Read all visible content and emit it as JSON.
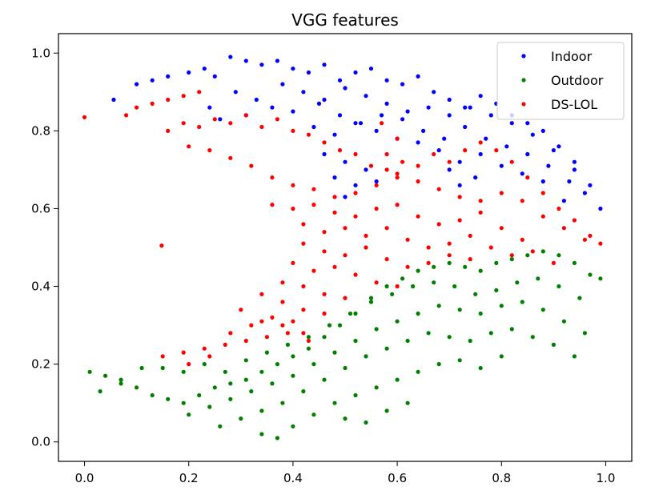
{
  "chart_data": {
    "type": "scatter",
    "title": "VGG features",
    "xlabel": "",
    "ylabel": "",
    "xlim": [
      -0.05,
      1.05
    ],
    "ylim": [
      -0.05,
      1.05
    ],
    "xticks": [
      "0.0",
      "0.2",
      "0.4",
      "0.6",
      "0.8",
      "1.0"
    ],
    "yticks": [
      "0.0",
      "0.2",
      "0.4",
      "0.6",
      "0.8",
      "1.0"
    ],
    "grid": false,
    "legend": {
      "placement": "top-right",
      "entries": [
        "Indoor",
        "Outdoor",
        "DS-LOL"
      ]
    },
    "series": [
      {
        "name": "Indoor",
        "color": "#0000ff",
        "x": [
          0.056,
          0.1,
          0.13,
          0.16,
          0.2,
          0.23,
          0.25,
          0.28,
          0.31,
          0.34,
          0.37,
          0.4,
          0.43,
          0.46,
          0.49,
          0.52,
          0.55,
          0.58,
          0.61,
          0.64,
          0.67,
          0.7,
          0.73,
          0.76,
          0.79,
          0.82,
          0.85,
          0.88,
          0.91,
          0.94,
          0.97,
          0.99,
          0.24,
          0.29,
          0.33,
          0.38,
          0.42,
          0.46,
          0.5,
          0.54,
          0.58,
          0.62,
          0.66,
          0.7,
          0.74,
          0.78,
          0.82,
          0.86,
          0.9,
          0.94,
          0.96,
          0.26,
          0.31,
          0.36,
          0.4,
          0.45,
          0.49,
          0.53,
          0.57,
          0.61,
          0.65,
          0.69,
          0.73,
          0.77,
          0.81,
          0.85,
          0.89,
          0.93,
          0.44,
          0.48,
          0.52,
          0.56,
          0.6,
          0.64,
          0.68,
          0.72,
          0.76,
          0.8,
          0.84,
          0.88,
          0.92,
          0.46,
          0.5,
          0.54,
          0.48,
          0.52,
          0.56,
          0.5,
          0.7,
          0.72,
          0.75
        ],
        "y": [
          0.88,
          0.92,
          0.93,
          0.94,
          0.95,
          0.96,
          0.94,
          0.99,
          0.98,
          0.97,
          0.98,
          0.96,
          0.95,
          0.97,
          0.93,
          0.95,
          0.96,
          0.93,
          0.92,
          0.94,
          0.9,
          0.88,
          0.86,
          0.89,
          0.87,
          0.84,
          0.82,
          0.8,
          0.76,
          0.72,
          0.66,
          0.6,
          0.86,
          0.9,
          0.88,
          0.92,
          0.9,
          0.88,
          0.91,
          0.89,
          0.87,
          0.85,
          0.86,
          0.84,
          0.86,
          0.84,
          0.82,
          0.79,
          0.75,
          0.7,
          0.64,
          0.83,
          0.84,
          0.86,
          0.85,
          0.87,
          0.84,
          0.82,
          0.84,
          0.83,
          0.8,
          0.78,
          0.81,
          0.78,
          0.76,
          0.74,
          0.71,
          0.67,
          0.81,
          0.79,
          0.82,
          0.8,
          0.78,
          0.77,
          0.75,
          0.72,
          0.74,
          0.71,
          0.69,
          0.67,
          0.62,
          0.74,
          0.72,
          0.7,
          0.68,
          0.66,
          0.67,
          0.63,
          0.7,
          0.66,
          0.68
        ]
      },
      {
        "name": "Outdoor",
        "color": "#008000",
        "x": [
          0.01,
          0.04,
          0.07,
          0.1,
          0.13,
          0.16,
          0.19,
          0.22,
          0.25,
          0.28,
          0.31,
          0.34,
          0.37,
          0.4,
          0.43,
          0.46,
          0.49,
          0.52,
          0.55,
          0.58,
          0.61,
          0.64,
          0.67,
          0.7,
          0.73,
          0.76,
          0.79,
          0.82,
          0.85,
          0.88,
          0.91,
          0.94,
          0.97,
          0.99,
          0.03,
          0.07,
          0.11,
          0.15,
          0.19,
          0.23,
          0.27,
          0.31,
          0.35,
          0.39,
          0.43,
          0.47,
          0.51,
          0.55,
          0.59,
          0.63,
          0.67,
          0.71,
          0.75,
          0.79,
          0.83,
          0.87,
          0.91,
          0.95,
          0.2,
          0.24,
          0.28,
          0.32,
          0.36,
          0.4,
          0.44,
          0.48,
          0.52,
          0.56,
          0.6,
          0.64,
          0.68,
          0.72,
          0.76,
          0.8,
          0.84,
          0.88,
          0.92,
          0.96,
          0.26,
          0.3,
          0.34,
          0.38,
          0.42,
          0.46,
          0.5,
          0.54,
          0.58,
          0.62,
          0.66,
          0.7,
          0.74,
          0.78,
          0.82,
          0.86,
          0.9,
          0.94,
          0.34,
          0.37,
          0.4,
          0.44,
          0.48,
          0.52,
          0.56,
          0.6,
          0.64,
          0.68,
          0.72,
          0.76,
          0.8,
          0.5,
          0.54,
          0.58,
          0.62
        ],
        "y": [
          0.18,
          0.17,
          0.15,
          0.14,
          0.12,
          0.11,
          0.1,
          0.12,
          0.14,
          0.15,
          0.16,
          0.18,
          0.2,
          0.22,
          0.24,
          0.27,
          0.3,
          0.33,
          0.37,
          0.4,
          0.42,
          0.44,
          0.45,
          0.46,
          0.45,
          0.44,
          0.46,
          0.47,
          0.48,
          0.49,
          0.48,
          0.46,
          0.43,
          0.42,
          0.13,
          0.16,
          0.19,
          0.19,
          0.18,
          0.2,
          0.18,
          0.21,
          0.23,
          0.25,
          0.27,
          0.3,
          0.33,
          0.36,
          0.38,
          0.4,
          0.41,
          0.4,
          0.38,
          0.39,
          0.41,
          0.42,
          0.4,
          0.37,
          0.07,
          0.09,
          0.11,
          0.13,
          0.15,
          0.17,
          0.2,
          0.23,
          0.26,
          0.29,
          0.31,
          0.33,
          0.35,
          0.34,
          0.33,
          0.35,
          0.36,
          0.34,
          0.31,
          0.28,
          0.04,
          0.06,
          0.08,
          0.1,
          0.13,
          0.16,
          0.19,
          0.22,
          0.24,
          0.26,
          0.28,
          0.27,
          0.26,
          0.28,
          0.29,
          0.27,
          0.25,
          0.22,
          0.02,
          0.01,
          0.04,
          0.07,
          0.1,
          0.12,
          0.14,
          0.16,
          0.18,
          0.2,
          0.21,
          0.19,
          0.22,
          0.06,
          0.05,
          0.08,
          0.1
        ]
      },
      {
        "name": "DS-LOL",
        "color": "#ff0000",
        "x": [
          0.0,
          0.148,
          0.08,
          0.1,
          0.13,
          0.16,
          0.19,
          0.22,
          0.16,
          0.19,
          0.22,
          0.25,
          0.28,
          0.31,
          0.34,
          0.37,
          0.4,
          0.43,
          0.46,
          0.49,
          0.52,
          0.55,
          0.58,
          0.61,
          0.64,
          0.67,
          0.7,
          0.73,
          0.76,
          0.79,
          0.82,
          0.85,
          0.88,
          0.91,
          0.94,
          0.97,
          0.99,
          0.2,
          0.24,
          0.28,
          0.32,
          0.36,
          0.4,
          0.44,
          0.48,
          0.52,
          0.56,
          0.6,
          0.64,
          0.68,
          0.72,
          0.76,
          0.8,
          0.84,
          0.88,
          0.92,
          0.96,
          0.36,
          0.4,
          0.44,
          0.48,
          0.52,
          0.56,
          0.6,
          0.64,
          0.68,
          0.72,
          0.76,
          0.8,
          0.84,
          0.42,
          0.46,
          0.5,
          0.54,
          0.58,
          0.62,
          0.66,
          0.7,
          0.74,
          0.78,
          0.82,
          0.86,
          0.9,
          0.42,
          0.46,
          0.5,
          0.54,
          0.58,
          0.62,
          0.66,
          0.7,
          0.74,
          0.4,
          0.44,
          0.48,
          0.52,
          0.56,
          0.6,
          0.38,
          0.42,
          0.46,
          0.5,
          0.34,
          0.38,
          0.42,
          0.46,
          0.3,
          0.34,
          0.38,
          0.42,
          0.15,
          0.19,
          0.23,
          0.27,
          0.31,
          0.35,
          0.39,
          0.43,
          0.2,
          0.24,
          0.28,
          0.32,
          0.36,
          0.4,
          0.57,
          0.6,
          0.58,
          0.6
        ],
        "y": [
          0.835,
          0.505,
          0.84,
          0.86,
          0.87,
          0.88,
          0.89,
          0.9,
          0.8,
          0.82,
          0.81,
          0.83,
          0.82,
          0.84,
          0.81,
          0.83,
          0.8,
          0.79,
          0.77,
          0.75,
          0.74,
          0.71,
          0.7,
          0.72,
          0.71,
          0.74,
          0.72,
          0.75,
          0.77,
          0.75,
          0.72,
          0.68,
          0.64,
          0.6,
          0.57,
          0.53,
          0.51,
          0.76,
          0.75,
          0.73,
          0.71,
          0.68,
          0.66,
          0.65,
          0.63,
          0.64,
          0.66,
          0.68,
          0.67,
          0.65,
          0.63,
          0.62,
          0.64,
          0.62,
          0.58,
          0.55,
          0.52,
          0.61,
          0.6,
          0.61,
          0.59,
          0.58,
          0.6,
          0.61,
          0.58,
          0.56,
          0.57,
          0.59,
          0.55,
          0.52,
          0.56,
          0.54,
          0.55,
          0.53,
          0.55,
          0.52,
          0.5,
          0.51,
          0.53,
          0.5,
          0.48,
          0.49,
          0.46,
          0.51,
          0.49,
          0.48,
          0.5,
          0.47,
          0.45,
          0.46,
          0.48,
          0.47,
          0.46,
          0.44,
          0.45,
          0.43,
          0.41,
          0.4,
          0.41,
          0.4,
          0.38,
          0.37,
          0.38,
          0.36,
          0.34,
          0.33,
          0.34,
          0.31,
          0.3,
          0.28,
          0.22,
          0.23,
          0.24,
          0.25,
          0.26,
          0.27,
          0.28,
          0.26,
          0.2,
          0.22,
          0.28,
          0.3,
          0.32,
          0.31,
          0.82,
          0.78,
          0.74,
          0.69
        ]
      }
    ]
  }
}
